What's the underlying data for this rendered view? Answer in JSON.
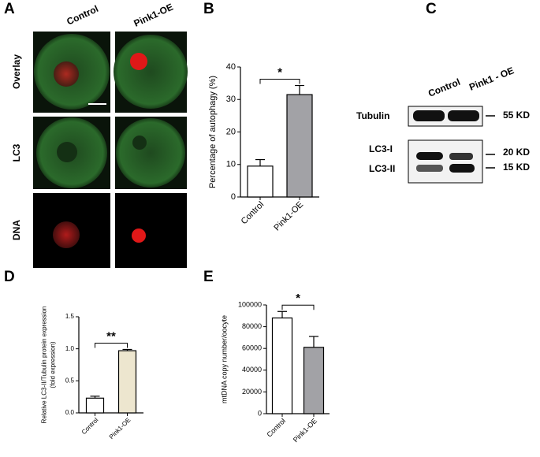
{
  "panel_letters": [
    "A",
    "B",
    "C",
    "D",
    "E"
  ],
  "panel_a": {
    "columns": [
      "Control",
      "Pink1-OE"
    ],
    "rows": [
      "Overlay",
      "LC3",
      "DNA"
    ]
  },
  "panel_c": {
    "columns": [
      "Control",
      "Pink1 - OE"
    ],
    "bands": [
      "Tubulin",
      "LC3-I",
      "LC3-II"
    ],
    "markers": [
      "55 KD",
      "20 KD",
      "15 KD"
    ]
  },
  "chart_data": [
    {
      "type": "bar",
      "ylabel": [
        "Percentage of autophagy (%)"
      ],
      "categories": [
        "Control",
        "Pink1-OE"
      ],
      "values": [
        9.5,
        31.5
      ],
      "errors": [
        2,
        2.8
      ],
      "colors": [
        "#ffffff",
        "#a2a2a6"
      ],
      "ylim": [
        0,
        40
      ],
      "yticks": [
        0,
        10,
        20,
        30,
        40
      ],
      "significance": "*"
    },
    {
      "type": "bar",
      "ylabel": [
        "Relative LC3-II/Tubulin protein expression",
        "(fold expression)"
      ],
      "categories": [
        "Control",
        "Pink1-OE"
      ],
      "values": [
        0.23,
        0.97
      ],
      "errors": [
        0.03,
        0.02
      ],
      "colors": [
        "#ffffff",
        "#ede6cf"
      ],
      "ylim": [
        0,
        1.5
      ],
      "yticks": [
        {
          "value": 0,
          "label": "0.0"
        },
        0.5,
        {
          "value": 1,
          "label": "1.0"
        },
        1.5
      ],
      "significance": "**"
    },
    {
      "type": "bar",
      "ylabel": [
        "mtDNA copy number/oocyte"
      ],
      "categories": [
        "Control",
        "Pink1-OE"
      ],
      "values": [
        88000,
        61000
      ],
      "errors": [
        6000,
        10000
      ],
      "colors": [
        "#ffffff",
        "#a2a2a6"
      ],
      "ylim": [
        0,
        100000
      ],
      "yticks": [
        0,
        20000,
        40000,
        60000,
        80000,
        100000
      ],
      "significance": "*"
    }
  ]
}
